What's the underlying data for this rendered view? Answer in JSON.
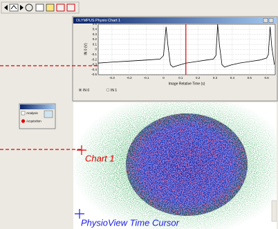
{
  "window": {
    "title": "OLYMPUS Physio Chart 1",
    "chart": {
      "type": "line",
      "y_label": "IN 0 (V)",
      "x_label": "Image Relative Time (s)",
      "x": [
        -0.38,
        -0.3,
        -0.2,
        -0.1,
        -0.02,
        0.0,
        0.015,
        0.025,
        0.04,
        0.055,
        0.08,
        0.13,
        0.19,
        0.25,
        0.29,
        0.305,
        0.315,
        0.325,
        0.34,
        0.355,
        0.39,
        0.44,
        0.5,
        0.56,
        0.6,
        0.61,
        0.62,
        0.63,
        0.645
      ],
      "values": [
        -0.27,
        -0.25,
        -0.23,
        -0.21,
        -0.19,
        -0.12,
        0.45,
        0.1,
        -0.3,
        -0.35,
        -0.32,
        -0.27,
        -0.24,
        -0.21,
        -0.19,
        -0.12,
        0.5,
        0.1,
        -0.3,
        -0.35,
        -0.31,
        -0.27,
        -0.24,
        -0.21,
        -0.17,
        -0.1,
        0.45,
        0.05,
        -0.3
      ],
      "color": "#000000",
      "cursor_x": 0.13,
      "cursor_color": "#e00000",
      "xlim": [
        -0.38,
        0.65
      ],
      "ylim": [
        -0.5,
        0.5
      ],
      "xticks": [
        -0.3,
        -0.2,
        -0.1,
        0,
        0.1,
        0.2,
        0.3,
        0.4,
        0.5,
        0.6
      ],
      "yticks": [
        0.5,
        0.4,
        0.3,
        0.2,
        0.1,
        0,
        -0.1,
        -0.2,
        -0.3,
        -0.4,
        -0.5
      ],
      "grid": true
    },
    "radios": [
      "IN 0",
      "IN 1"
    ]
  },
  "panel": {
    "items": [
      "Analysis",
      "Acquisition"
    ]
  },
  "annotations": {
    "chart": "Chart 1",
    "cursor": "PhysioView Time Cursor"
  }
}
